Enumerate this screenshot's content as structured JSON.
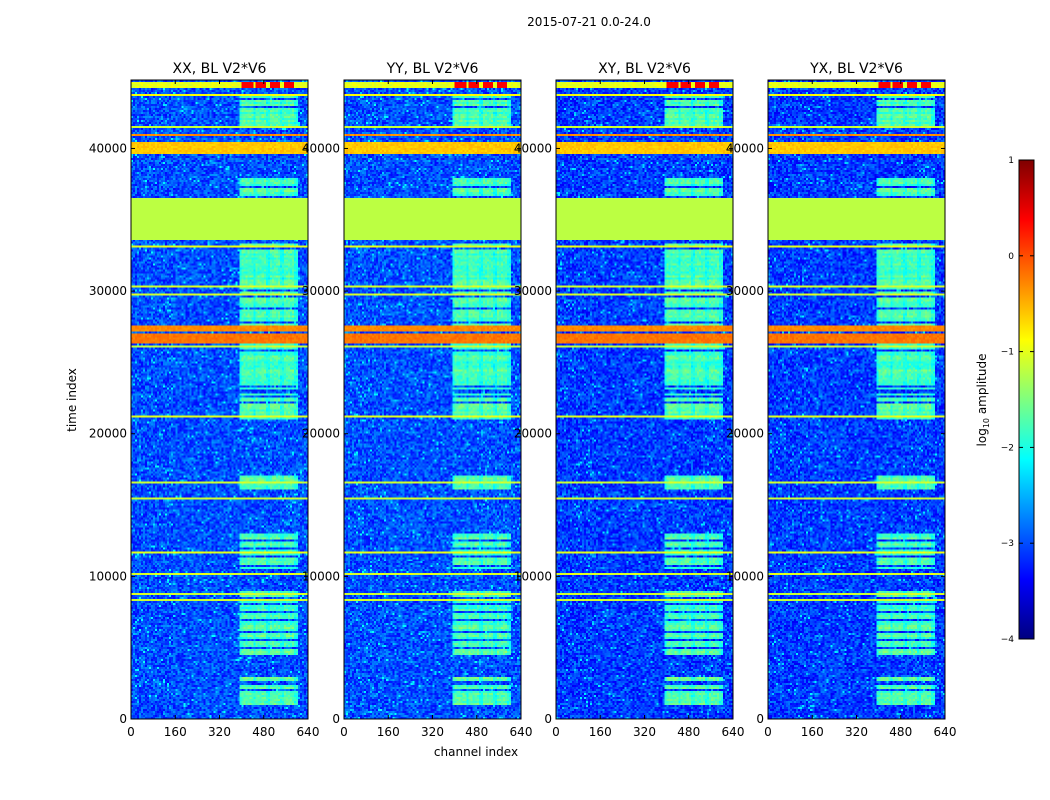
{
  "figure_title": "2015-07-21 0.0-24.0",
  "colors": {
    "jet": [
      "#00007f",
      "#0000ff",
      "#007fff",
      "#00ffff",
      "#7fff7f",
      "#ffff00",
      "#ff7f00",
      "#ff0000",
      "#7f0000"
    ]
  },
  "chart_data": {
    "type": "heatmap",
    "xlabel": "channel index",
    "ylabel": "time index",
    "xlim": [
      0,
      640
    ],
    "ylim": [
      0,
      44800
    ],
    "xticks": [
      0,
      160,
      320,
      480,
      640
    ],
    "yticks": [
      0,
      10000,
      20000,
      30000,
      40000
    ],
    "xtick_labels": [
      "0",
      "160",
      "320",
      "480",
      "640"
    ],
    "ytick_labels": [
      "0",
      "10000",
      "20000",
      "30000",
      "40000"
    ],
    "colorbar": {
      "label": "log10 amplitude",
      "label_base": "log",
      "label_sub": "10",
      "label_rest": " amplitude",
      "range": [
        -4,
        1
      ],
      "ticks": [
        1,
        0,
        -1,
        -2,
        -3,
        -4
      ],
      "tick_labels": [
        "1",
        "0",
        "−1",
        "−2",
        "−3",
        "−4"
      ]
    },
    "panels": [
      {
        "title": "XX, BL V2*V6",
        "baseline_log10": -3.0
      },
      {
        "title": "YY, BL V2*V6",
        "baseline_log10": -3.0
      },
      {
        "title": "XY, BL V2*V6",
        "baseline_log10": -3.1
      },
      {
        "title": "YX, BL V2*V6",
        "baseline_log10": -3.1
      }
    ],
    "flagged_band": {
      "t_start": 33600,
      "t_end": 36500,
      "log10_amp": -1.2
    },
    "strong_bands": [
      {
        "t_start": 26300,
        "t_end": 27000,
        "log10_amp": -0.2
      },
      {
        "t_start": 27200,
        "t_end": 27600,
        "log10_amp": -0.3
      },
      {
        "t_start": 39600,
        "t_end": 40400,
        "log10_amp": -0.6
      },
      {
        "t_start": 44200,
        "t_end": 44700,
        "log10_amp": -1.0
      }
    ],
    "channel_blocks": [
      {
        "c_start": 400,
        "c_end": 440,
        "log10_amp": 0.4
      },
      {
        "c_start": 450,
        "c_end": 490,
        "log10_amp": 0.4
      },
      {
        "c_start": 500,
        "c_end": 540,
        "log10_amp": 0.4
      },
      {
        "c_start": 550,
        "c_end": 590,
        "log10_amp": 0.4
      }
    ]
  }
}
